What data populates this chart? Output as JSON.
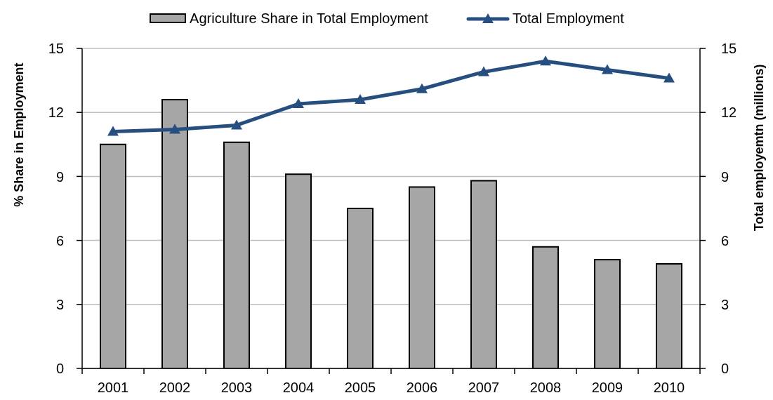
{
  "chart_data": {
    "type": "bar",
    "categories": [
      "2001",
      "2002",
      "2003",
      "2004",
      "2005",
      "2006",
      "2007",
      "2008",
      "2009",
      "2010"
    ],
    "ylabel": "% Share in Employment",
    "y2label": "Total employemtn (millions)",
    "ylim": [
      0,
      15
    ],
    "yticks": [
      0,
      3,
      6,
      9,
      12,
      15
    ],
    "y2lim": [
      0,
      15
    ],
    "y2ticks": [
      0,
      3,
      6,
      9,
      12,
      15
    ],
    "grid": "y",
    "legend": "top",
    "series": [
      {
        "name": "Agriculture Share in Total Employment",
        "color": "#a6a6a6",
        "values": [
          10.5,
          12.6,
          10.6,
          9.1,
          7.5,
          8.5,
          8.8,
          5.7,
          5.1,
          4.9
        ]
      },
      {
        "name": "Total Employment",
        "type": "line",
        "axis": "y2",
        "color": "#264f80",
        "marker": "triangle",
        "values": [
          11.1,
          11.2,
          11.4,
          12.4,
          12.6,
          13.1,
          13.9,
          14.4,
          14.0,
          13.6
        ]
      }
    ]
  }
}
